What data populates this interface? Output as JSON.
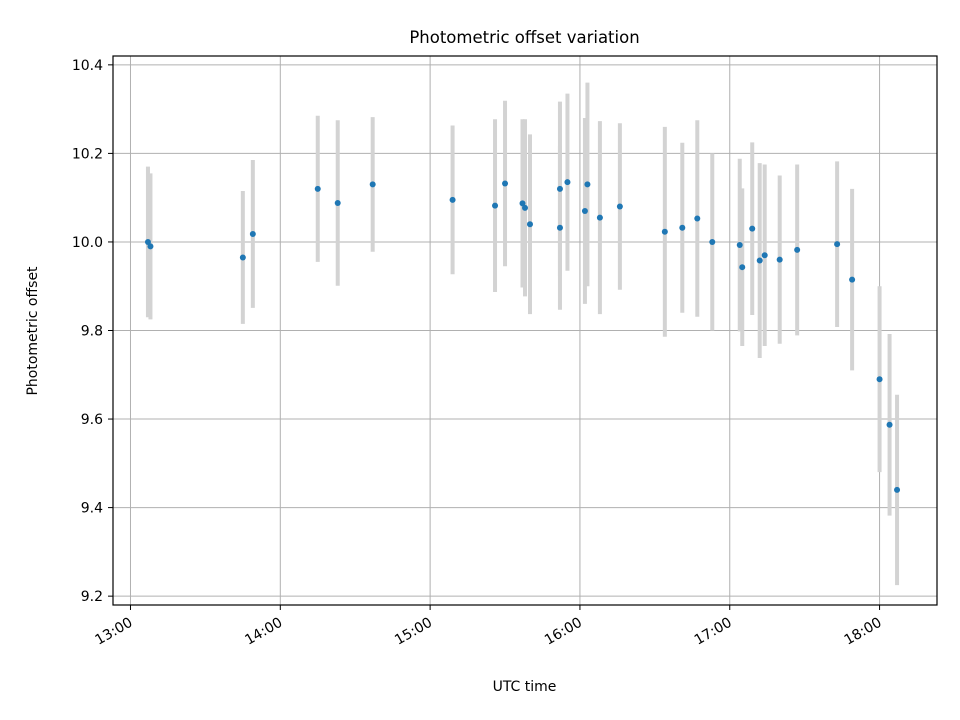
{
  "chart_data": {
    "type": "scatter",
    "title": "Photometric offset variation",
    "xlabel": "UTC time",
    "ylabel": "Photometric offset",
    "xlim": [
      "12:53",
      "18:23"
    ],
    "ylim": [
      9.18,
      10.42
    ],
    "xticks": [
      "13:00",
      "14:00",
      "15:00",
      "16:00",
      "17:00",
      "18:00"
    ],
    "yticks": [
      "9.2",
      "9.4",
      "9.6",
      "9.8",
      "10.0",
      "10.2",
      "10.4"
    ],
    "grid": true,
    "colors": {
      "point": "#1f77b4",
      "errorbar": "#d3d3d3",
      "grid": "#b0b0b0"
    },
    "points": [
      {
        "x": "13:07",
        "y": 10.0,
        "yerr": 0.17
      },
      {
        "x": "13:08",
        "y": 9.99,
        "yerr": 0.165
      },
      {
        "x": "13:45",
        "y": 9.965,
        "yerr": 0.15
      },
      {
        "x": "13:49",
        "y": 10.018,
        "yerr": 0.167
      },
      {
        "x": "14:15",
        "y": 10.12,
        "yerr": 0.165
      },
      {
        "x": "14:23",
        "y": 10.088,
        "yerr": 0.187
      },
      {
        "x": "14:37",
        "y": 10.13,
        "yerr": 0.152
      },
      {
        "x": "15:09",
        "y": 10.095,
        "yerr": 0.168
      },
      {
        "x": "15:26",
        "y": 10.082,
        "yerr": 0.195
      },
      {
        "x": "15:30",
        "y": 10.132,
        "yerr": 0.187
      },
      {
        "x": "15:37",
        "y": 10.087,
        "yerr": 0.19
      },
      {
        "x": "15:38",
        "y": 10.077,
        "yerr": 0.2
      },
      {
        "x": "15:40",
        "y": 10.04,
        "yerr": 0.203
      },
      {
        "x": "15:52",
        "y": 10.032,
        "yerr": 0.185
      },
      {
        "x": "15:52",
        "y": 10.12,
        "yerr": 0.197
      },
      {
        "x": "15:55",
        "y": 10.135,
        "yerr": 0.2
      },
      {
        "x": "16:02",
        "y": 10.07,
        "yerr": 0.21
      },
      {
        "x": "16:03",
        "y": 10.13,
        "yerr": 0.23
      },
      {
        "x": "16:08",
        "y": 10.055,
        "yerr": 0.218
      },
      {
        "x": "16:16",
        "y": 10.08,
        "yerr": 0.188
      },
      {
        "x": "16:34",
        "y": 10.023,
        "yerr": 0.237
      },
      {
        "x": "16:41",
        "y": 10.032,
        "yerr": 0.192
      },
      {
        "x": "16:47",
        "y": 10.053,
        "yerr": 0.222
      },
      {
        "x": "16:53",
        "y": 10.0,
        "yerr": 0.2
      },
      {
        "x": "17:04",
        "y": 9.993,
        "yerr": 0.195
      },
      {
        "x": "17:05",
        "y": 9.943,
        "yerr": 0.178
      },
      {
        "x": "17:09",
        "y": 10.03,
        "yerr": 0.195
      },
      {
        "x": "17:12",
        "y": 9.958,
        "yerr": 0.22
      },
      {
        "x": "17:14",
        "y": 9.97,
        "yerr": 0.205
      },
      {
        "x": "17:20",
        "y": 9.96,
        "yerr": 0.19
      },
      {
        "x": "17:27",
        "y": 9.982,
        "yerr": 0.193
      },
      {
        "x": "17:43",
        "y": 9.995,
        "yerr": 0.187
      },
      {
        "x": "17:49",
        "y": 9.915,
        "yerr": 0.205
      },
      {
        "x": "18:00",
        "y": 9.69,
        "yerr": 0.21
      },
      {
        "x": "18:04",
        "y": 9.587,
        "yerr": 0.205
      },
      {
        "x": "18:07",
        "y": 9.44,
        "yerr": 0.215
      }
    ]
  }
}
